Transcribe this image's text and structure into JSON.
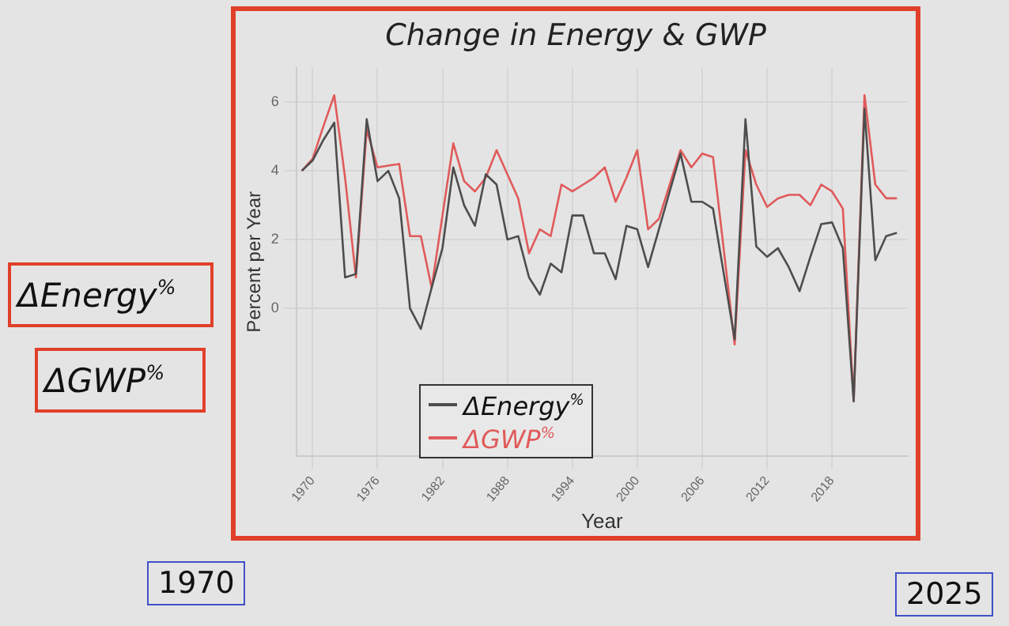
{
  "chart_data": {
    "type": "line",
    "title": "Change in Energy & GWP",
    "xlabel": "Year",
    "ylabel": "Percent per Year",
    "x": [
      1969,
      1970,
      1971,
      1972,
      1973,
      1974,
      1975,
      1976,
      1977,
      1978,
      1979,
      1980,
      1981,
      1982,
      1983,
      1984,
      1985,
      1986,
      1987,
      1988,
      1989,
      1990,
      1991,
      1992,
      1993,
      1994,
      1995,
      1996,
      1997,
      1998,
      1999,
      2000,
      2001,
      2002,
      2003,
      2004,
      2005,
      2006,
      2007,
      2008,
      2009,
      2010,
      2011,
      2012,
      2013,
      2014,
      2015,
      2016,
      2017,
      2018,
      2019,
      2020,
      2021,
      2022,
      2023,
      2024
    ],
    "series": [
      {
        "name": "ΔEnergy$^{%}$",
        "color": "#4d4d4d",
        "values": [
          4.0,
          4.3,
          4.9,
          5.4,
          0.9,
          1.0,
          5.5,
          3.7,
          4.0,
          3.2,
          0.0,
          -0.6,
          0.6,
          1.75,
          4.1,
          3.0,
          2.4,
          3.9,
          3.6,
          2.0,
          2.1,
          0.9,
          0.4,
          1.3,
          1.05,
          2.7,
          2.7,
          1.6,
          1.6,
          0.85,
          2.4,
          2.3,
          1.2,
          2.3,
          3.4,
          4.5,
          3.1,
          3.1,
          2.9,
          1.0,
          -0.9,
          5.5,
          1.8,
          1.5,
          1.75,
          1.2,
          0.5,
          1.5,
          2.45,
          2.5,
          1.75,
          -2.7,
          5.8,
          1.4,
          2.1,
          2.2
        ]
      },
      {
        "name": "ΔGWP$^{%}$",
        "color": "#e05a5a",
        "values": [
          4.0,
          4.35,
          5.3,
          6.2,
          3.8,
          0.9,
          5.2,
          4.1,
          4.15,
          4.2,
          2.1,
          2.1,
          0.6,
          2.7,
          4.8,
          3.7,
          3.4,
          3.8,
          4.6,
          3.9,
          3.2,
          1.6,
          2.3,
          2.1,
          3.6,
          3.4,
          3.6,
          3.8,
          4.1,
          3.1,
          3.8,
          4.6,
          2.3,
          2.6,
          3.6,
          4.6,
          4.1,
          4.5,
          4.4,
          1.7,
          -1.05,
          4.6,
          3.6,
          2.95,
          3.2,
          3.3,
          3.3,
          3.0,
          3.6,
          3.4,
          2.9,
          -2.7,
          6.2,
          3.6,
          3.2,
          3.2
        ]
      }
    ],
    "xlim": [
      1968.5,
      2025
    ],
    "xticks": [
      1970,
      1976,
      1982,
      1988,
      1994,
      2000,
      2006,
      2012,
      2018
    ],
    "ylim": [
      -4.3,
      7
    ],
    "yticks": [
      0,
      2,
      4,
      6
    ],
    "grid": true,
    "legend": "bottom",
    "marker": "none",
    "line_style": "solid",
    "annotations": [
      "1970",
      "2025"
    ]
  }
}
